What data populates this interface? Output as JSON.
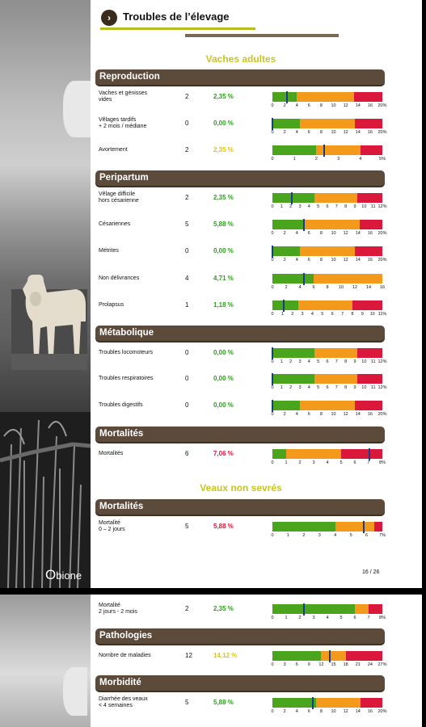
{
  "header": {
    "title": "Troubles de l’élevage",
    "arrow": "›"
  },
  "groups": {
    "adult": "Vaches adultes",
    "calves": "Veaux non sevrés"
  },
  "sections": [
    {
      "label": "Reproduction",
      "page": 0,
      "top": 86
    },
    {
      "label": "Peripartum",
      "page": 0,
      "top": 211
    },
    {
      "label": "Métabolique",
      "page": 0,
      "top": 403
    },
    {
      "label": "Mortalités",
      "page": 0,
      "top": 528
    },
    {
      "label": "Mortalités",
      "page": 0,
      "top": 618
    },
    {
      "label": "Pathologies",
      "page": 1,
      "top": 42
    },
    {
      "label": "Morbidité",
      "page": 1,
      "top": 100
    }
  ],
  "rows": [
    {
      "page": 0,
      "top": 112,
      "label": "Vaches et génisses\nvides",
      "count": "2",
      "pct": "2,35 %",
      "pct_color": "#2e9e1e",
      "segments": [
        [
          "#4aa41e",
          2.5
        ],
        [
          "#f39a1c",
          6
        ],
        [
          "#d9183b",
          3
        ]
      ],
      "marker": 0.13,
      "ticks": [
        "0",
        "2",
        "4",
        "6",
        "8",
        "10",
        "12",
        "14",
        "16",
        "20%"
      ]
    },
    {
      "page": 0,
      "top": 145,
      "label": "Vêlages tardifs\n+ 2 mois / médiane",
      "count": "0",
      "pct": "0,00 %",
      "pct_color": "#2e9e1e",
      "segments": [
        [
          "#4aa41e",
          2.5
        ],
        [
          "#f39a1c",
          5
        ],
        [
          "#d9183b",
          2.5
        ]
      ],
      "marker": 0.0,
      "ticks": [
        "0",
        "2",
        "4",
        "6",
        "8",
        "10",
        "12",
        "14",
        "16",
        "20%"
      ]
    },
    {
      "page": 0,
      "top": 178,
      "label": "Avortement",
      "count": "2",
      "pct": "2,35 %",
      "pct_color": "#d9c51a",
      "segments": [
        [
          "#4aa41e",
          4
        ],
        [
          "#f39a1c",
          4
        ],
        [
          "#d9183b",
          2
        ]
      ],
      "marker": 0.47,
      "ticks": [
        "0",
        "1",
        "2",
        "3",
        "4",
        "5%"
      ]
    },
    {
      "page": 0,
      "top": 237,
      "label": "Vêlage difficile\nhors césarienne",
      "count": "2",
      "pct": "2,35 %",
      "pct_color": "#2e9e1e",
      "segments": [
        [
          "#4aa41e",
          5
        ],
        [
          "#f39a1c",
          5
        ],
        [
          "#d9183b",
          3
        ]
      ],
      "marker": 0.18,
      "ticks": [
        "0",
        "1",
        "2",
        "3",
        "4",
        "5",
        "6",
        "7",
        "8",
        "9",
        "10",
        "11",
        "12%"
      ]
    },
    {
      "page": 0,
      "top": 270,
      "label": "Césariennes",
      "count": "5",
      "pct": "5,88 %",
      "pct_color": "#2e9e1e",
      "segments": [
        [
          "#4aa41e",
          3.5
        ],
        [
          "#f39a1c",
          6
        ],
        [
          "#d9183b",
          2.5
        ]
      ],
      "marker": 0.29,
      "ticks": [
        "0",
        "2",
        "4",
        "6",
        "8",
        "10",
        "12",
        "14",
        "16",
        "20%"
      ]
    },
    {
      "page": 0,
      "top": 303,
      "label": "Métrites",
      "count": "0",
      "pct": "0,00 %",
      "pct_color": "#2e9e1e",
      "segments": [
        [
          "#4aa41e",
          2.5
        ],
        [
          "#f39a1c",
          5
        ],
        [
          "#d9183b",
          2.5
        ]
      ],
      "marker": 0.0,
      "ticks": [
        "0",
        "2",
        "4",
        "6",
        "8",
        "10",
        "12",
        "14",
        "16",
        "20%"
      ]
    },
    {
      "page": 0,
      "top": 337,
      "label": "Non délivrances",
      "count": "4",
      "pct": "4,71 %",
      "pct_color": "#2e9e1e",
      "segments": [
        [
          "#4aa41e",
          3
        ],
        [
          "#f39a1c",
          5
        ],
        [
          "#d9183b",
          0
        ]
      ],
      "marker": 0.29,
      "ticks": [
        "0",
        "2",
        "4",
        "6",
        "8",
        "10",
        "12",
        "14",
        "16"
      ]
    },
    {
      "page": 0,
      "top": 370,
      "label": "Prolapsus",
      "count": "1",
      "pct": "1,18 %",
      "pct_color": "#2e9e1e",
      "segments": [
        [
          "#4aa41e",
          2.6
        ],
        [
          "#f39a1c",
          5.4
        ],
        [
          "#d9183b",
          3
        ]
      ],
      "marker": 0.1,
      "ticks": [
        "0",
        "1",
        "2",
        "3",
        "4",
        "5",
        "6",
        "7",
        "8",
        "9",
        "10",
        "11%"
      ]
    },
    {
      "page": 0,
      "top": 429,
      "label": "Troubles locomoteurs",
      "count": "0",
      "pct": "0,00 %",
      "pct_color": "#2e9e1e",
      "segments": [
        [
          "#4aa41e",
          5
        ],
        [
          "#f39a1c",
          5
        ],
        [
          "#d9183b",
          3
        ]
      ],
      "marker": 0.0,
      "ticks": [
        "0",
        "1",
        "2",
        "3",
        "4",
        "5",
        "6",
        "7",
        "8",
        "9",
        "10",
        "11",
        "12%"
      ]
    },
    {
      "page": 0,
      "top": 461,
      "label": "Troubles respiratoires",
      "count": "0",
      "pct": "0,00 %",
      "pct_color": "#2e9e1e",
      "segments": [
        [
          "#4aa41e",
          5
        ],
        [
          "#f39a1c",
          5
        ],
        [
          "#d9183b",
          3
        ]
      ],
      "marker": 0.0,
      "ticks": [
        "0",
        "1",
        "2",
        "3",
        "4",
        "5",
        "6",
        "7",
        "8",
        "9",
        "10",
        "11",
        "12%"
      ]
    },
    {
      "page": 0,
      "top": 494,
      "label": "Troubles digestifs",
      "count": "0",
      "pct": "0,00 %",
      "pct_color": "#2e9e1e",
      "segments": [
        [
          "#4aa41e",
          2.5
        ],
        [
          "#f39a1c",
          5
        ],
        [
          "#d9183b",
          2.5
        ]
      ],
      "marker": 0.0,
      "ticks": [
        "0",
        "2",
        "4",
        "6",
        "8",
        "10",
        "12",
        "14",
        "16",
        "20%"
      ]
    },
    {
      "page": 0,
      "top": 554,
      "label": "Mortalités",
      "count": "6",
      "pct": "7,06 %",
      "pct_color": "#d9183b",
      "segments": [
        [
          "#4aa41e",
          1
        ],
        [
          "#f39a1c",
          4
        ],
        [
          "#d9183b",
          3
        ]
      ],
      "marker": 0.88,
      "ticks": [
        "0",
        "1",
        "2",
        "3",
        "4",
        "5",
        "6",
        "7",
        "8%"
      ]
    },
    {
      "page": 0,
      "top": 644,
      "label": "Mortalité\n0 – 2 jours",
      "count": "5",
      "pct": "5,88 %",
      "pct_color": "#d9183b",
      "segments": [
        [
          "#4aa41e",
          4
        ],
        [
          "#f39a1c",
          2.5
        ],
        [
          "#d9183b",
          0.5
        ]
      ],
      "marker": 0.83,
      "ticks": [
        "0",
        "1",
        "2",
        "3",
        "4",
        "5",
        "6",
        "7%"
      ]
    },
    {
      "page": 1,
      "top": 10,
      "label": "Mortalité\n2 jours - 2 mois",
      "count": "2",
      "pct": "2,35 %",
      "pct_color": "#2e9e1e",
      "segments": [
        [
          "#4aa41e",
          6
        ],
        [
          "#f39a1c",
          1
        ],
        [
          "#d9183b",
          1
        ]
      ],
      "marker": 0.29,
      "ticks": [
        "0",
        "1",
        "2",
        "3",
        "4",
        "5",
        "6",
        "7",
        "8%"
      ]
    },
    {
      "page": 1,
      "top": 68,
      "label": "Nombre de maladies",
      "count": "12",
      "pct": "14,12 %",
      "pct_color": "#d9c51a",
      "segments": [
        [
          "#4aa41e",
          12
        ],
        [
          "#f39a1c",
          6
        ],
        [
          "#d9183b",
          9
        ]
      ],
      "marker": 0.52,
      "ticks": [
        "0",
        "3",
        "6",
        "9",
        "12",
        "15",
        "18",
        "21",
        "24",
        "27%"
      ]
    },
    {
      "page": 1,
      "top": 126,
      "label": "Diarrhée des veaux\n< 4 semaines",
      "count": "5",
      "pct": "5,88 %",
      "pct_color": "#2e9e1e",
      "segments": [
        [
          "#4aa41e",
          8
        ],
        [
          "#f39a1c",
          8
        ],
        [
          "#d9183b",
          4
        ]
      ],
      "marker": 0.37,
      "ticks": [
        "0",
        "2",
        "4",
        "6",
        "8",
        "10",
        "12",
        "14",
        "16",
        "20%"
      ]
    }
  ],
  "footer": {
    "page_number": "16 / 26",
    "logo": "bione",
    "logo_initial": "O"
  }
}
